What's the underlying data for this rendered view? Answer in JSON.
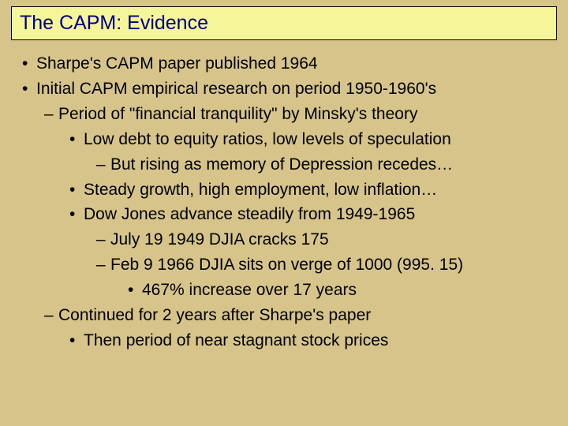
{
  "slide": {
    "title": "The CAPM: Evidence",
    "background_color": "#d6c48a",
    "title_box": {
      "background_color": "#f5f59a",
      "border_color": "#000000",
      "text_color": "#000080",
      "fontsize": 25
    },
    "body": {
      "fontsize": 21,
      "text_color": "#000000",
      "line_height": 1.52
    },
    "bullets": [
      {
        "level": 1,
        "text": "Sharpe's CAPM paper published 1964"
      },
      {
        "level": 1,
        "text": "Initial CAPM empirical research on period 1950-1960's"
      },
      {
        "level": 2,
        "text": "Period of \"financial tranquility\" by Minsky's theory"
      },
      {
        "level": 3,
        "text": "Low debt to equity ratios, low levels of speculation"
      },
      {
        "level": 4,
        "text": "But rising as memory of Depression recedes…"
      },
      {
        "level": 3,
        "text": "Steady growth, high employment, low inflation…"
      },
      {
        "level": 3,
        "text": "Dow Jones advance steadily from 1949-1965"
      },
      {
        "level": 4,
        "text": "July 19 1949 DJIA cracks 175"
      },
      {
        "level": 4,
        "text": "Feb 9 1966 DJIA sits on verge of 1000 (995. 15)"
      },
      {
        "level": 5,
        "text": "467% increase over 17 years"
      },
      {
        "level": 2,
        "text": "Continued for 2 years after Sharpe's paper"
      },
      {
        "level": 3,
        "text": "Then period of near stagnant stock prices"
      }
    ]
  }
}
